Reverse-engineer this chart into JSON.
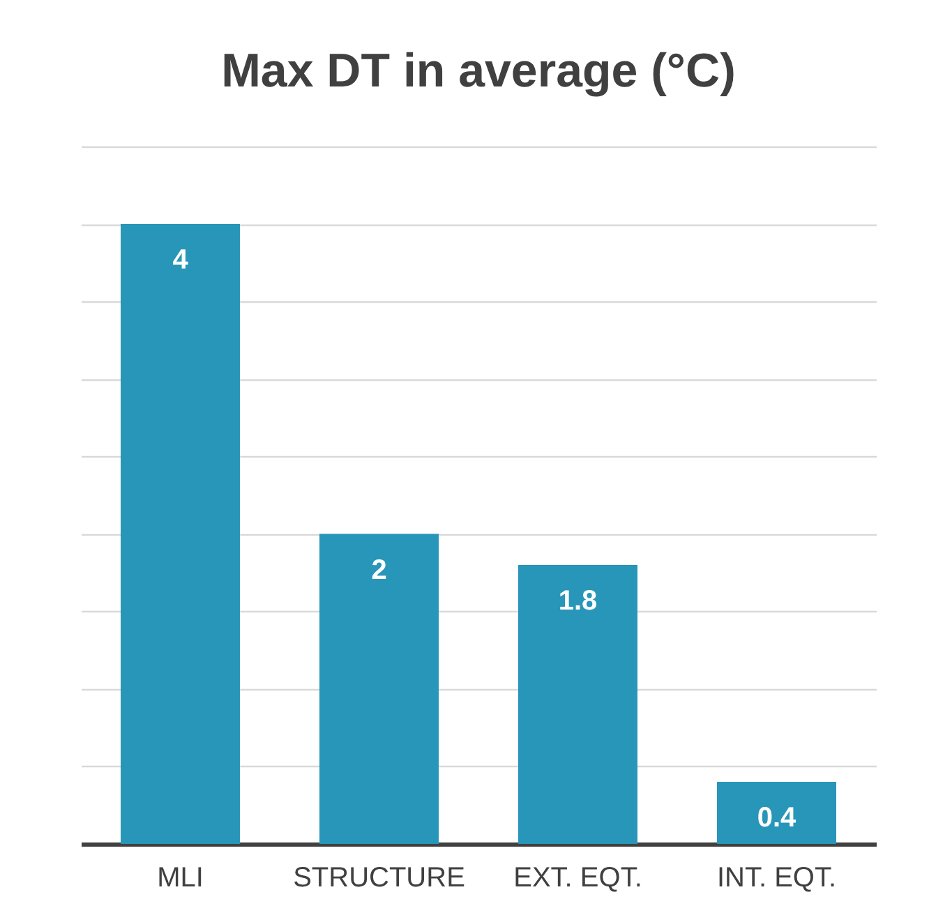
{
  "chart_data": {
    "type": "bar",
    "title": "Max DT in average (°C)",
    "categories": [
      "MLI",
      "STRUCTURE",
      "EXT. EQT.",
      "INT. EQT."
    ],
    "values": [
      4,
      2,
      1.8,
      0.4
    ],
    "color": "#2896b8",
    "data_labels": true,
    "ylim": [
      0,
      4.5
    ],
    "yticks": [
      {
        "value": 0,
        "label": null
      },
      {
        "value": 0.5,
        "label": null
      },
      {
        "value": 1,
        "label": null
      },
      {
        "value": 1.5,
        "label": null
      },
      {
        "value": 2,
        "label": null
      },
      {
        "value": 2.5,
        "label": null
      },
      {
        "value": 3,
        "label": null
      },
      {
        "value": 3.5,
        "label": null
      },
      {
        "value": 4,
        "label": null
      },
      {
        "value": 4.5,
        "label": null
      }
    ],
    "grid": "y",
    "tick_labels": "x"
  }
}
